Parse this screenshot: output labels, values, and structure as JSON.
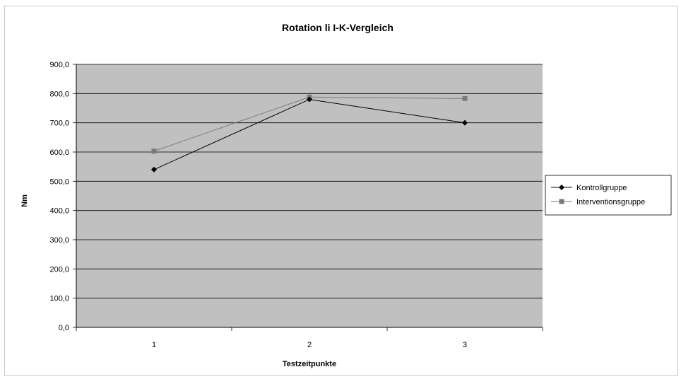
{
  "chart_data": {
    "type": "line",
    "title": "Rotation li I-K-Vergleich",
    "xlabel": "Testzeitpunkte",
    "ylabel": "Nm",
    "categories": [
      "1",
      "2",
      "3"
    ],
    "ylim": [
      0,
      900
    ],
    "ytick_step": 100,
    "ytick_labels": [
      "0,0",
      "100,0",
      "200,0",
      "300,0",
      "400,0",
      "500,0",
      "600,0",
      "700,0",
      "800,0",
      "900,0"
    ],
    "grid": true,
    "legend_position": "right",
    "plot_background": "#c0c0c0",
    "series": [
      {
        "name": "Kontrollgruppe",
        "values": [
          540,
          780,
          700
        ],
        "color": "#000000",
        "marker": "diamond"
      },
      {
        "name": "Interventionsgruppe",
        "values": [
          603,
          788,
          783
        ],
        "color": "#7a7a7a",
        "marker": "square"
      }
    ]
  }
}
